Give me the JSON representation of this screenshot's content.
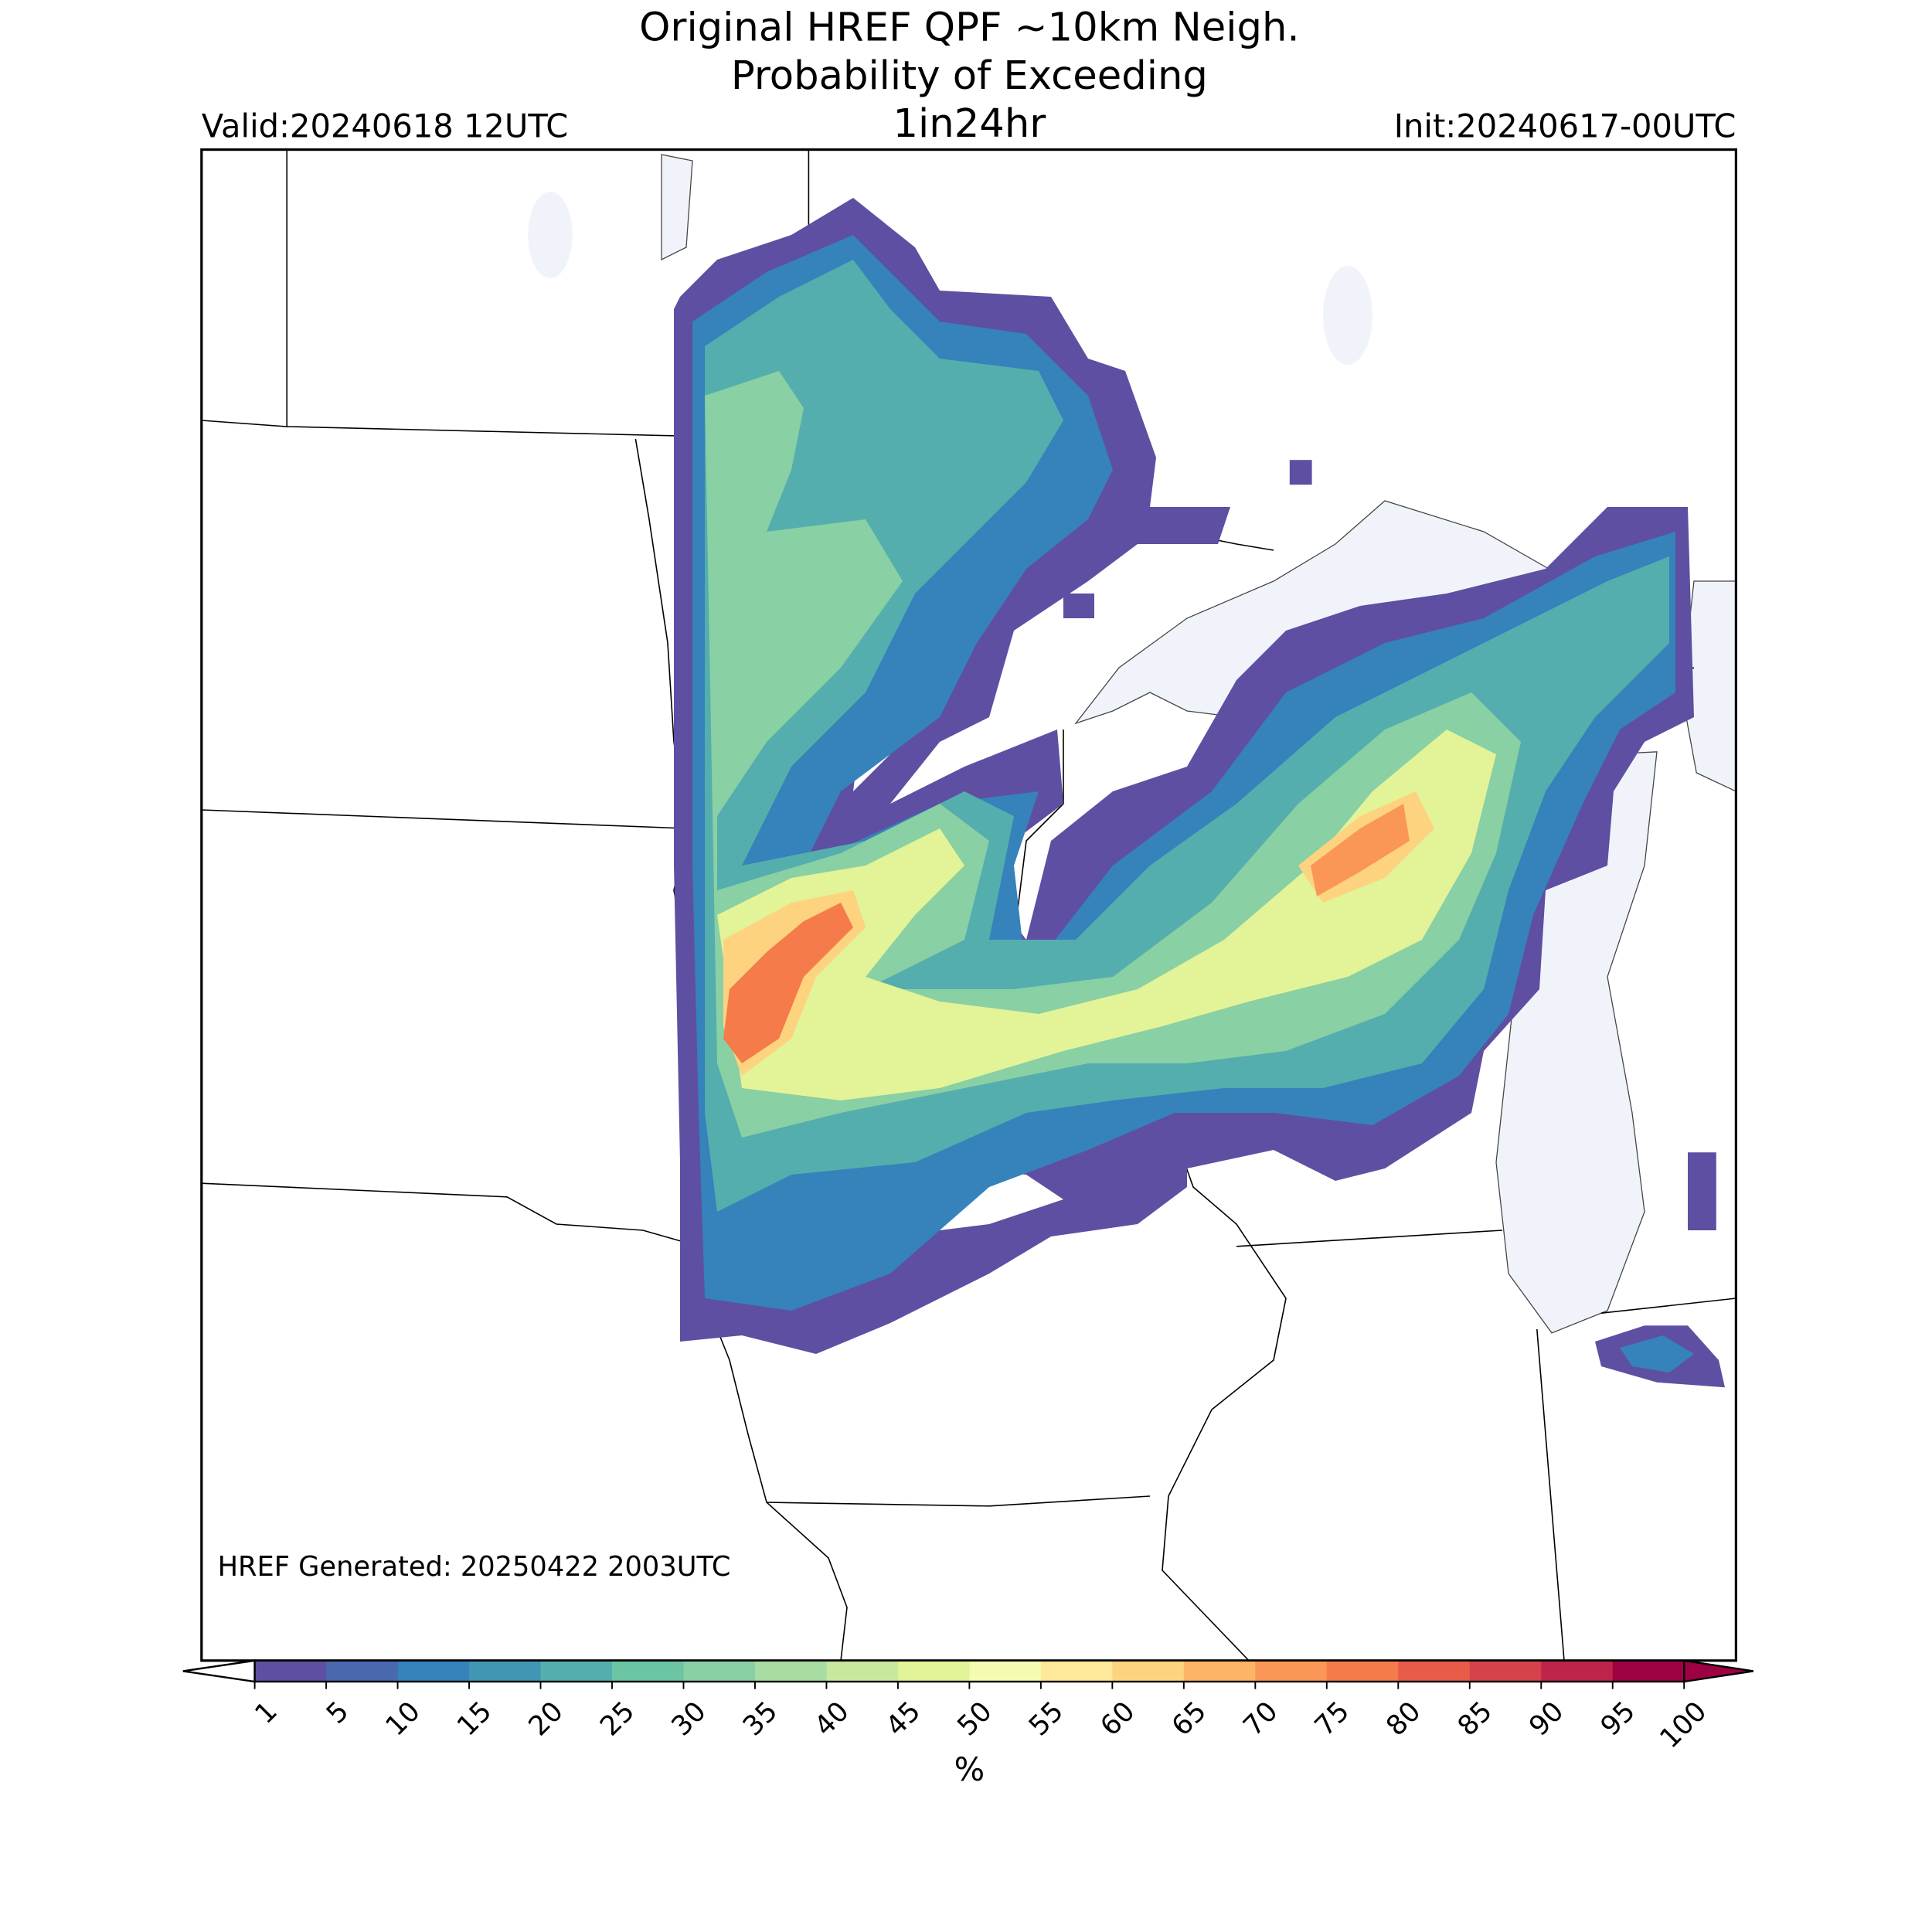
{
  "header": {
    "title_line1": "Original HREF QPF ~10km Neigh.",
    "title_line2": "Probability of Exceeding",
    "title_line3": "1in24hr",
    "valid": "Valid:20240618 12UTC",
    "init": "Init:20240617-00UTC"
  },
  "footer": {
    "generated": "HREF Generated: 20250422 2003UTC"
  },
  "colorbar": {
    "label": "%",
    "ticks": [
      1,
      5,
      10,
      15,
      20,
      25,
      30,
      35,
      40,
      45,
      50,
      55,
      60,
      65,
      70,
      75,
      80,
      85,
      90,
      95,
      100
    ],
    "colors": [
      "#5e4fa2",
      "#4a68ae",
      "#3682ba",
      "#4196b4",
      "#54aead",
      "#6bc4a4",
      "#89d0a4",
      "#a8dca2",
      "#c7e89e",
      "#e2f398",
      "#f5fbb0",
      "#fee899",
      "#fdd380",
      "#fdb466",
      "#fa9656",
      "#f67b4a",
      "#e85b48",
      "#d6424b",
      "#be2449",
      "#9e0142"
    ]
  }
}
